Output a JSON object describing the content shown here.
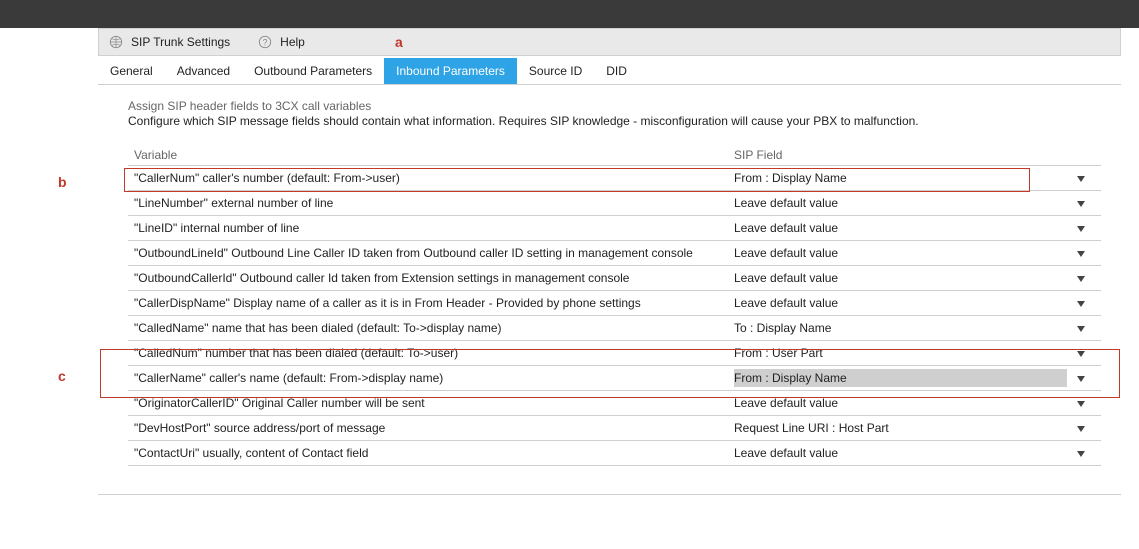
{
  "toolbar": {
    "title": "SIP Trunk Settings",
    "help_label": "Help"
  },
  "annotations": {
    "a": "a",
    "b": "b",
    "c": "c"
  },
  "tabs": [
    {
      "label": "General"
    },
    {
      "label": "Advanced"
    },
    {
      "label": "Outbound Parameters"
    },
    {
      "label": "Inbound Parameters",
      "active": true
    },
    {
      "label": "Source ID"
    },
    {
      "label": "DID"
    }
  ],
  "section": {
    "heading": "Assign SIP header fields to 3CX call variables",
    "subheading": "Configure which SIP message fields should contain what information. Requires SIP knowledge - misconfiguration will cause your PBX to malfunction."
  },
  "columns": {
    "variable": "Variable",
    "sip_field": "SIP Field"
  },
  "rows": [
    {
      "variable": "\"CallerNum\" caller's number (default: From->user)",
      "sip_field": "From : Display Name"
    },
    {
      "variable": "\"LineNumber\" external number of line",
      "sip_field": "Leave default value"
    },
    {
      "variable": "\"LineID\" internal number of line",
      "sip_field": "Leave default value"
    },
    {
      "variable": "\"OutboundLineId\" Outbound Line Caller ID taken from Outbound caller ID setting in management console",
      "sip_field": "Leave default value"
    },
    {
      "variable": "\"OutboundCallerId\" Outbound caller Id taken from Extension settings in management console",
      "sip_field": "Leave default value"
    },
    {
      "variable": "\"CallerDispName\" Display name of a caller as it is in From Header - Provided by phone settings",
      "sip_field": "Leave default value"
    },
    {
      "variable": "\"CalledName\" name that has been dialed (default: To->display name)",
      "sip_field": "To : Display Name"
    },
    {
      "variable": "\"CalledNum\" number that has been dialed (default: To->user)",
      "sip_field": "From : User Part"
    },
    {
      "variable": "\"CallerName\" caller's name (default: From->display name)",
      "sip_field": "From : Display Name",
      "selected": true
    },
    {
      "variable": "\"OriginatorCallerID\" Original Caller number will be sent",
      "sip_field": "Leave default value"
    },
    {
      "variable": "\"DevHostPort\" source address/port of message",
      "sip_field": "Request Line URI : Host Part"
    },
    {
      "variable": "\"ContactUri\" usually, content of Contact field",
      "sip_field": "Leave default value"
    }
  ],
  "colors": {
    "active_tab_bg": "#2ea3e6",
    "annotation_red": "#c0392b",
    "toolbar_bg": "#e9e9e9",
    "border": "#cfcfcf",
    "dark_bar": "#3a3a3a",
    "selected_row_bg": "#cfcfcf"
  }
}
